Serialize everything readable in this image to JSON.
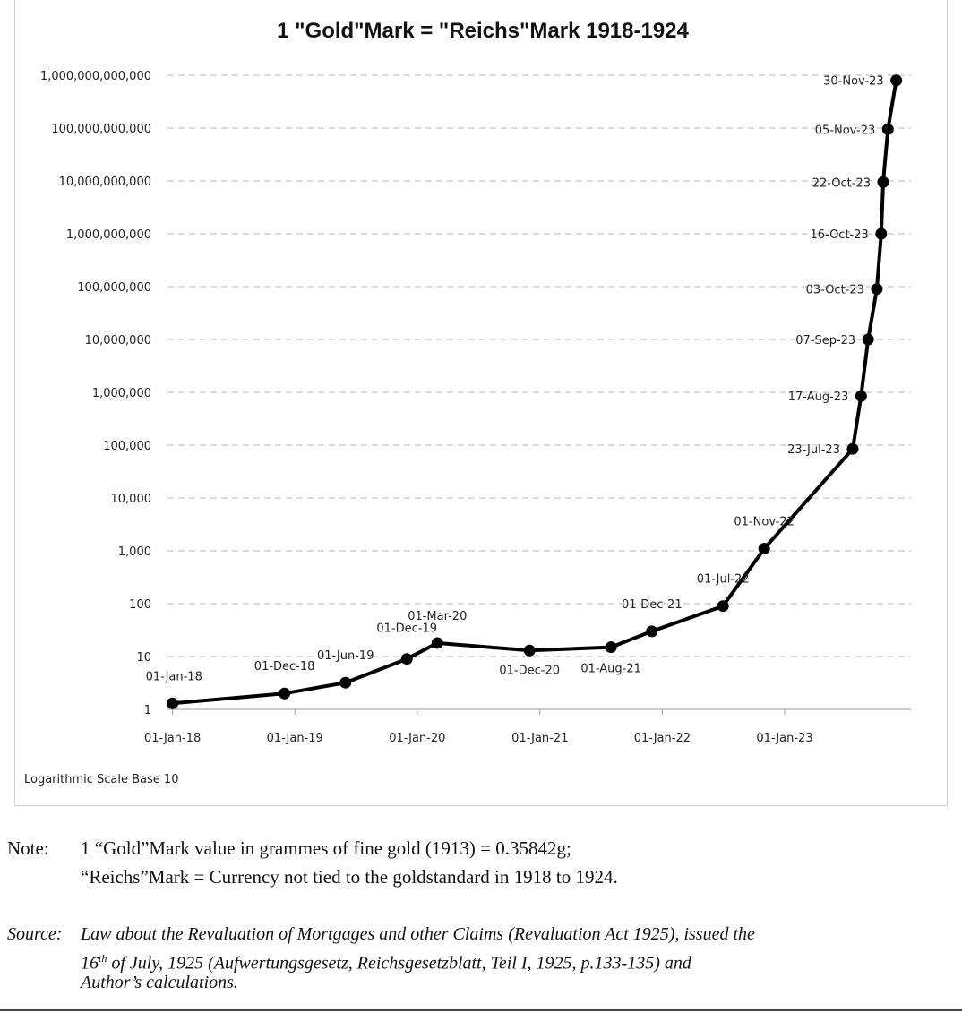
{
  "chart_data": {
    "type": "line",
    "title": "1 \"Gold\"Mark = \"Reichs\"Mark 1918-1924",
    "scale_note": "Logarithmic Scale Base 10",
    "y_scale": "log10",
    "ylim": [
      1,
      1000000000000
    ],
    "y_ticks": [
      {
        "value": 1,
        "label": "1"
      },
      {
        "value": 10,
        "label": "10"
      },
      {
        "value": 100,
        "label": "100"
      },
      {
        "value": 1000,
        "label": "1,000"
      },
      {
        "value": 10000,
        "label": "10,000"
      },
      {
        "value": 100000,
        "label": "100,000"
      },
      {
        "value": 1000000,
        "label": "1,000,000"
      },
      {
        "value": 10000000,
        "label": "10,000,000"
      },
      {
        "value": 100000000,
        "label": "100,000,000"
      },
      {
        "value": 1000000000,
        "label": "1,000,000,000"
      },
      {
        "value": 10000000000,
        "label": "10,000,000,000"
      },
      {
        "value": 100000000000,
        "label": "100,000,000,000"
      },
      {
        "value": 1000000000000,
        "label": "1,000,000,000,000"
      }
    ],
    "x_ticks": [
      {
        "date": "1918-01-01",
        "label": "01-Jan-18"
      },
      {
        "date": "1919-01-01",
        "label": "01-Jan-19"
      },
      {
        "date": "1920-01-01",
        "label": "01-Jan-20"
      },
      {
        "date": "1921-01-01",
        "label": "01-Jan-21"
      },
      {
        "date": "1922-01-01",
        "label": "01-Jan-22"
      },
      {
        "date": "1923-01-01",
        "label": "01-Jan-23"
      }
    ],
    "grid": true,
    "series": [
      {
        "points": [
          {
            "date": "1918-01-01",
            "value": 1.3,
            "label": "01-Jan-18"
          },
          {
            "date": "1918-12-01",
            "value": 2,
            "label": "01-Dec-18"
          },
          {
            "date": "1919-06-01",
            "value": 3.2,
            "label": "01-Jun-19"
          },
          {
            "date": "1919-12-01",
            "value": 9,
            "label": "01-Dec-19"
          },
          {
            "date": "1920-03-01",
            "value": 18,
            "label": "01-Mar-20"
          },
          {
            "date": "1920-12-01",
            "value": 13,
            "label": "01-Dec-20"
          },
          {
            "date": "1921-08-01",
            "value": 15,
            "label": "01-Aug-21"
          },
          {
            "date": "1921-12-01",
            "value": 30,
            "label": "01-Dec-21"
          },
          {
            "date": "1922-07-01",
            "value": 90,
            "label": "01-Jul-22"
          },
          {
            "date": "1922-11-01",
            "value": 1100,
            "label": "01-Nov-22"
          },
          {
            "date": "1923-07-23",
            "value": 85000,
            "label": "23-Jul-23"
          },
          {
            "date": "1923-08-17",
            "value": 850000,
            "label": "17-Aug-23"
          },
          {
            "date": "1923-09-07",
            "value": 10000000,
            "label": "07-Sep-23"
          },
          {
            "date": "1923-10-03",
            "value": 90000000,
            "label": "03-Oct-23"
          },
          {
            "date": "1923-10-16",
            "value": 1000000000,
            "label": "16-Oct-23"
          },
          {
            "date": "1923-10-22",
            "value": 9500000000,
            "label": "22-Oct-23"
          },
          {
            "date": "1923-11-05",
            "value": 95000000000,
            "label": "05-Nov-23"
          },
          {
            "date": "1923-11-30",
            "value": 800000000000,
            "label": "30-Nov-23"
          }
        ]
      }
    ]
  },
  "note": {
    "label": "Note:",
    "line1": "1 “Gold”Mark value in grammes of fine gold (1913) = 0.35842g;",
    "line2": "“Reichs”Mark = Currency not tied to the goldstandard in 1918 to 1924."
  },
  "source": {
    "label": "Source:",
    "line1": "Law about the Revaluation of Mortgages and other Claims (Revaluation Act 1925), issued the",
    "line2_prefix": "16",
    "line2_sup": "th",
    "line2_rest": " of July, 1925 (Aufwertungsgesetz, Reichsgesetzblatt, Teil I, 1925, p.133-135) and",
    "line3": "Author’s calculations."
  }
}
